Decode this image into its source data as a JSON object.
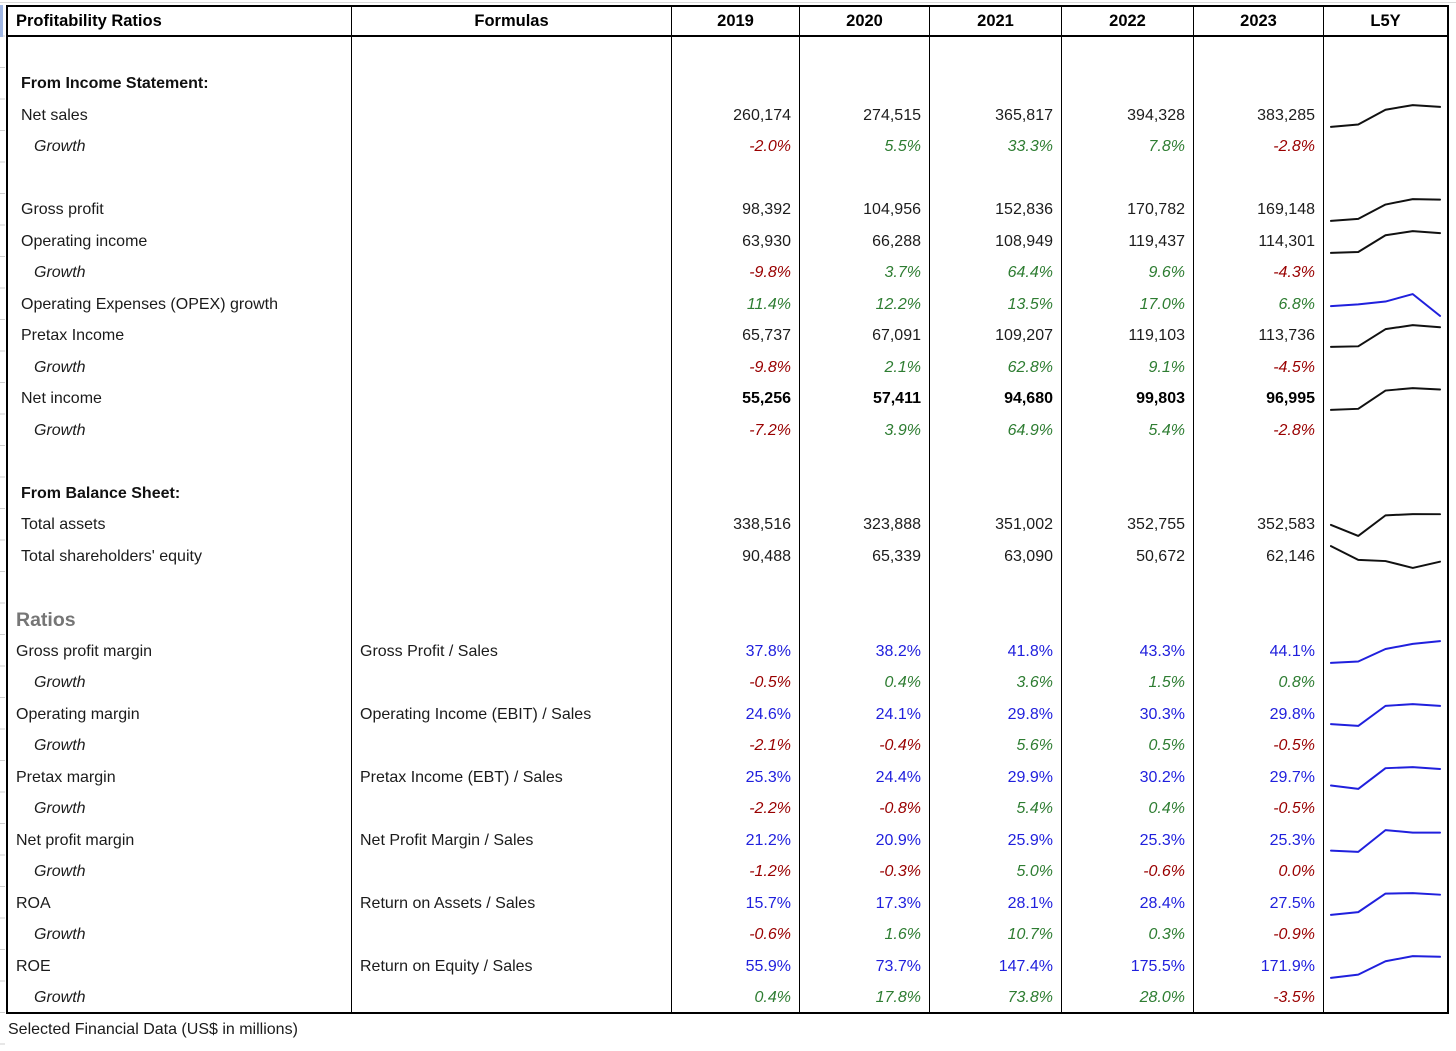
{
  "header": {
    "col_label": "Profitability Ratios",
    "col_formulas": "Formulas",
    "years": [
      "2019",
      "2020",
      "2021",
      "2022",
      "2023"
    ],
    "col_spark": "L5Y"
  },
  "footer": {
    "note": "Selected Financial Data (US$ in millions)"
  },
  "colors": {
    "positive_growth": "#2e7d32",
    "negative_growth": "#990000",
    "ratio_blue": "#2020dd",
    "spark_black": "#111111",
    "spark_blue": "#2020dd",
    "border": "#000000"
  },
  "rows": [
    {
      "type": "blank"
    },
    {
      "type": "section",
      "label": "From Income Statement:"
    },
    {
      "type": "money",
      "label": "Net sales",
      "values": [
        "260,174",
        "274,515",
        "365,817",
        "394,328",
        "383,285"
      ],
      "spark": "black"
    },
    {
      "type": "growth",
      "label": "Growth",
      "values": [
        "-2.0%",
        "5.5%",
        "33.3%",
        "7.8%",
        "-2.8%"
      ]
    },
    {
      "type": "blank"
    },
    {
      "type": "money",
      "label": "Gross profit",
      "values": [
        "98,392",
        "104,956",
        "152,836",
        "170,782",
        "169,148"
      ],
      "spark": "black"
    },
    {
      "type": "money",
      "label": "Operating income",
      "values": [
        "63,930",
        "66,288",
        "108,949",
        "119,437",
        "114,301"
      ],
      "spark": "black"
    },
    {
      "type": "growth",
      "label": "Growth",
      "values": [
        "-9.8%",
        "3.7%",
        "64.4%",
        "9.6%",
        "-4.3%"
      ]
    },
    {
      "type": "growth",
      "label": "Operating Expenses (OPEX) growth",
      "plain_label": true,
      "values": [
        "11.4%",
        "12.2%",
        "13.5%",
        "17.0%",
        "6.8%"
      ],
      "spark": "blue"
    },
    {
      "type": "money",
      "label": "Pretax Income",
      "values": [
        "65,737",
        "67,091",
        "109,207",
        "119,103",
        "113,736"
      ],
      "spark": "black"
    },
    {
      "type": "growth",
      "label": "Growth",
      "values": [
        "-9.8%",
        "2.1%",
        "62.8%",
        "9.1%",
        "-4.5%"
      ]
    },
    {
      "type": "money",
      "label": "Net income",
      "bold": true,
      "values": [
        "55,256",
        "57,411",
        "94,680",
        "99,803",
        "96,995"
      ],
      "spark": "black"
    },
    {
      "type": "growth",
      "label": "Growth",
      "values": [
        "-7.2%",
        "3.9%",
        "64.9%",
        "5.4%",
        "-2.8%"
      ]
    },
    {
      "type": "blank"
    },
    {
      "type": "section",
      "label": "From Balance Sheet:"
    },
    {
      "type": "money",
      "label": "Total assets",
      "values": [
        "338,516",
        "323,888",
        "351,002",
        "352,755",
        "352,583"
      ],
      "spark": "black"
    },
    {
      "type": "money",
      "label": "Total shareholders' equity",
      "values": [
        "90,488",
        "65,339",
        "63,090",
        "50,672",
        "62,146"
      ],
      "spark": "black"
    },
    {
      "type": "blank"
    },
    {
      "type": "ratios-header",
      "label": "Ratios"
    },
    {
      "type": "ratio",
      "label": "Gross profit margin",
      "formula": "Gross Profit / Sales",
      "values": [
        "37.8%",
        "38.2%",
        "41.8%",
        "43.3%",
        "44.1%"
      ],
      "spark": "blue"
    },
    {
      "type": "growth",
      "label": "Growth",
      "values": [
        "-0.5%",
        "0.4%",
        "3.6%",
        "1.5%",
        "0.8%"
      ]
    },
    {
      "type": "ratio",
      "label": "Operating margin",
      "formula": "Operating Income (EBIT) / Sales",
      "values": [
        "24.6%",
        "24.1%",
        "29.8%",
        "30.3%",
        "29.8%"
      ],
      "spark": "blue"
    },
    {
      "type": "growth",
      "label": "Growth",
      "values": [
        "-2.1%",
        "-0.4%",
        "5.6%",
        "0.5%",
        "-0.5%"
      ]
    },
    {
      "type": "ratio",
      "label": "Pretax margin",
      "formula": "Pretax Income (EBT) / Sales",
      "values": [
        "25.3%",
        "24.4%",
        "29.9%",
        "30.2%",
        "29.7%"
      ],
      "spark": "blue"
    },
    {
      "type": "growth",
      "label": "Growth",
      "values": [
        "-2.2%",
        "-0.8%",
        "5.4%",
        "0.4%",
        "-0.5%"
      ]
    },
    {
      "type": "ratio",
      "label": "Net profit margin",
      "formula": "Net Profit Margin / Sales",
      "values": [
        "21.2%",
        "20.9%",
        "25.9%",
        "25.3%",
        "25.3%"
      ],
      "spark": "blue"
    },
    {
      "type": "growth",
      "label": "Growth",
      "values": [
        "-1.2%",
        "-0.3%",
        "5.0%",
        "-0.6%",
        "0.0%"
      ]
    },
    {
      "type": "ratio",
      "label": "ROA",
      "formula": "Return on Assets / Sales",
      "values": [
        "15.7%",
        "17.3%",
        "28.1%",
        "28.4%",
        "27.5%"
      ],
      "spark": "blue"
    },
    {
      "type": "growth",
      "label": "Growth",
      "values": [
        "-0.6%",
        "1.6%",
        "10.7%",
        "0.3%",
        "-0.9%"
      ]
    },
    {
      "type": "ratio",
      "label": "ROE",
      "formula": "Return on Equity / Sales",
      "values": [
        "55.9%",
        "73.7%",
        "147.4%",
        "175.5%",
        "171.9%"
      ],
      "spark": "blue"
    },
    {
      "type": "growth",
      "label": "Growth",
      "values": [
        "0.4%",
        "17.8%",
        "73.8%",
        "28.0%",
        "-3.5%"
      ]
    }
  ]
}
